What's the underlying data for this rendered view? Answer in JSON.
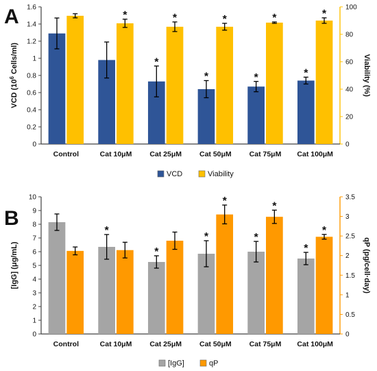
{
  "chart_data": [
    {
      "type": "bar",
      "panel": "A",
      "categories": [
        "Control",
        "Cat 10μM",
        "Cat 25μM",
        "Cat 50μM",
        "Cat 75μM",
        "Cat 100μM"
      ],
      "ylabel_left": "VCD (10",
      "ylabel_left_sup": "6",
      "ylabel_left_end": " Cells/ml)",
      "ylabel_right": "Viability (%)",
      "ylim_left": [
        0,
        1.6
      ],
      "yticks_left": [
        "0",
        "0.2",
        "0.4",
        "0.6",
        "0.8",
        "1",
        "1.2",
        "1.4",
        "1.6"
      ],
      "ylim_right": [
        0,
        100
      ],
      "yticks_right": [
        "0",
        "20",
        "40",
        "60",
        "80",
        "100"
      ],
      "legend": "bottom",
      "grid": false,
      "series": [
        {
          "name": "VCD",
          "axis": "left",
          "color": "#2f5597",
          "values": [
            1.29,
            0.98,
            0.73,
            0.64,
            0.67,
            0.74
          ],
          "errors": [
            0.18,
            0.21,
            0.18,
            0.1,
            0.06,
            0.04
          ],
          "significant": [
            false,
            false,
            true,
            true,
            true,
            true
          ]
        },
        {
          "name": "Viability",
          "axis": "right",
          "color": "#ffc000",
          "values": [
            93.5,
            88,
            85.5,
            85.5,
            88.5,
            90
          ],
          "errors": [
            1.5,
            3.0,
            3.5,
            2.5,
            0.5,
            2.0
          ],
          "significant": [
            false,
            true,
            true,
            true,
            true,
            true
          ]
        }
      ],
      "significance_marker": "*"
    },
    {
      "type": "bar",
      "panel": "B",
      "categories": [
        "Control",
        "Cat 10μM",
        "Cat 25μM",
        "Cat 50μM",
        "Cat 75μM",
        "Cat 100μM"
      ],
      "ylabel_left": "[IgG] (μg/mL)",
      "ylabel_right": "qP (pg/cell·day)",
      "ylim_left": [
        0,
        10
      ],
      "yticks_left": [
        "0",
        "1",
        "2",
        "3",
        "4",
        "5",
        "6",
        "7",
        "8",
        "9",
        "10"
      ],
      "ylim_right": [
        0,
        3.5
      ],
      "yticks_right": [
        "0",
        "0.5",
        "1",
        "1.5",
        "2",
        "2.5",
        "3",
        "3.5"
      ],
      "legend": "bottom",
      "grid": false,
      "series": [
        {
          "name": "[IgG]",
          "axis": "left",
          "color": "#a5a5a5",
          "values": [
            8.15,
            6.35,
            5.25,
            5.85,
            6.0,
            5.5
          ],
          "errors": [
            0.6,
            0.9,
            0.45,
            0.95,
            0.75,
            0.45
          ],
          "significant": [
            false,
            true,
            true,
            true,
            true,
            true
          ]
        },
        {
          "name": "qP",
          "axis": "right",
          "color": "#ff9900",
          "values": [
            2.12,
            2.14,
            2.38,
            3.05,
            2.99,
            2.48
          ],
          "errors": [
            0.1,
            0.2,
            0.22,
            0.24,
            0.17,
            0.06
          ],
          "significant": [
            false,
            false,
            false,
            true,
            true,
            true
          ]
        }
      ],
      "significance_marker": "*"
    }
  ]
}
